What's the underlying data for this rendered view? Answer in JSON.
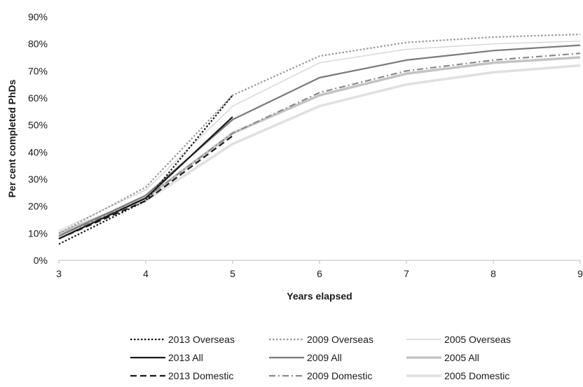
{
  "chart_data": {
    "type": "line",
    "title": "",
    "xlabel": "Years elapsed",
    "ylabel": "Per cent completed PhDs",
    "xlim": [
      3,
      9
    ],
    "ylim": [
      0,
      90
    ],
    "x_ticks": [
      "3",
      "4",
      "5",
      "6",
      "7",
      "8",
      "9"
    ],
    "y_ticks": [
      "0%",
      "10%",
      "20%",
      "30%",
      "40%",
      "50%",
      "60%",
      "70%",
      "80%",
      "90%"
    ],
    "grid": false,
    "legend_position": "bottom",
    "series": [
      {
        "name": "2013 Overseas",
        "x": [
          3,
          4,
          5
        ],
        "values": [
          6,
          22,
          61
        ],
        "color": "#1a1a1a",
        "dash": "dotted",
        "width": "medium"
      },
      {
        "name": "2009 Overseas",
        "x": [
          3,
          4,
          5,
          6,
          7,
          8,
          9
        ],
        "values": [
          10,
          27,
          61,
          75.5,
          80.5,
          82.5,
          83.5
        ],
        "color": "#9a9a9a",
        "dash": "dotted",
        "width": "medium"
      },
      {
        "name": "2005 Overseas",
        "x": [
          3,
          4,
          5,
          6,
          7,
          8,
          9
        ],
        "values": [
          11,
          26,
          57,
          73,
          78,
          80,
          81
        ],
        "color": "#d6d6d6",
        "dash": "solid",
        "width": "thin"
      },
      {
        "name": "2013 All",
        "x": [
          3,
          4,
          5
        ],
        "values": [
          8,
          23,
          53
        ],
        "color": "#1a1a1a",
        "dash": "solid",
        "width": "medium"
      },
      {
        "name": "2009 All",
        "x": [
          3,
          4,
          5,
          6,
          7,
          8,
          9
        ],
        "values": [
          9,
          24,
          52,
          67.5,
          74,
          77.5,
          79.5
        ],
        "color": "#7a7a7a",
        "dash": "solid",
        "width": "medium"
      },
      {
        "name": "2005 All",
        "x": [
          3,
          4,
          5,
          6,
          7,
          8,
          9
        ],
        "values": [
          10,
          23,
          47,
          61,
          69,
          73,
          75
        ],
        "color": "#c4c4c4",
        "dash": "solid",
        "width": "thick"
      },
      {
        "name": "2013 Domestic",
        "x": [
          3,
          4,
          5
        ],
        "values": [
          8,
          22,
          46
        ],
        "color": "#1a1a1a",
        "dash": "dashed",
        "width": "medium"
      },
      {
        "name": "2009 Domestic",
        "x": [
          3,
          4,
          5,
          6,
          7,
          8,
          9
        ],
        "values": [
          9,
          23,
          47,
          62,
          70,
          74,
          76.5
        ],
        "color": "#8a8a8a",
        "dash": "dashdot",
        "width": "medium"
      },
      {
        "name": "2005 Domestic",
        "x": [
          3,
          4,
          5,
          6,
          7,
          8,
          9
        ],
        "values": [
          9,
          22,
          43,
          57,
          65,
          69.5,
          72
        ],
        "color": "#e0e0e0",
        "dash": "solid",
        "width": "thick"
      }
    ]
  }
}
